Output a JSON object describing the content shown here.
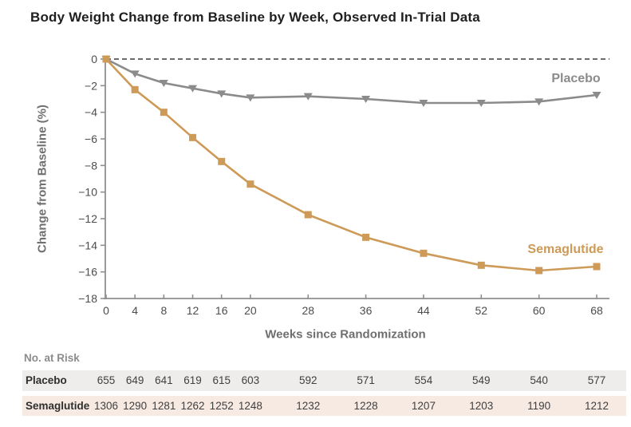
{
  "title": "Body Weight Change from Baseline by Week, Observed In-Trial Data",
  "chart_data": {
    "type": "line",
    "x": [
      0,
      4,
      8,
      12,
      16,
      20,
      28,
      36,
      44,
      52,
      60,
      68
    ],
    "series": [
      {
        "name": "Placebo",
        "color": "#8b8b8b",
        "marker": "triangle-down",
        "values": [
          0,
          -1.1,
          -1.8,
          -2.2,
          -2.6,
          -2.9,
          -2.8,
          -3.0,
          -3.3,
          -3.3,
          -3.2,
          -2.7
        ]
      },
      {
        "name": "Semaglutide",
        "color": "#cd9a58",
        "marker": "square",
        "values": [
          0,
          -2.3,
          -4.0,
          -5.9,
          -7.7,
          -9.4,
          -11.7,
          -13.4,
          -14.6,
          -15.5,
          -15.9,
          -15.6
        ]
      }
    ],
    "xlabel": "Weeks since Randomization",
    "ylabel": "Change from Baseline (%)",
    "xlim": [
      0,
      68
    ],
    "ylim": [
      -18,
      0
    ],
    "xticks": [
      0,
      4,
      8,
      12,
      16,
      20,
      28,
      36,
      44,
      52,
      60,
      68
    ],
    "yticks": [
      0,
      -2,
      -4,
      -6,
      -8,
      -10,
      -12,
      -14,
      -16,
      -18
    ],
    "reference_line_y": 0,
    "grid": false,
    "legend_position": "inline-labels"
  },
  "risk_table": {
    "header": "No. at Risk",
    "rows": [
      {
        "label": "Placebo",
        "bg": "#efedeb",
        "values": [
          655,
          649,
          641,
          619,
          615,
          603,
          592,
          571,
          554,
          549,
          540,
          577
        ]
      },
      {
        "label": "Semaglutide",
        "bg": "#f7eae2",
        "values": [
          1306,
          1290,
          1281,
          1262,
          1252,
          1248,
          1232,
          1228,
          1207,
          1203,
          1190,
          1212
        ]
      }
    ]
  }
}
